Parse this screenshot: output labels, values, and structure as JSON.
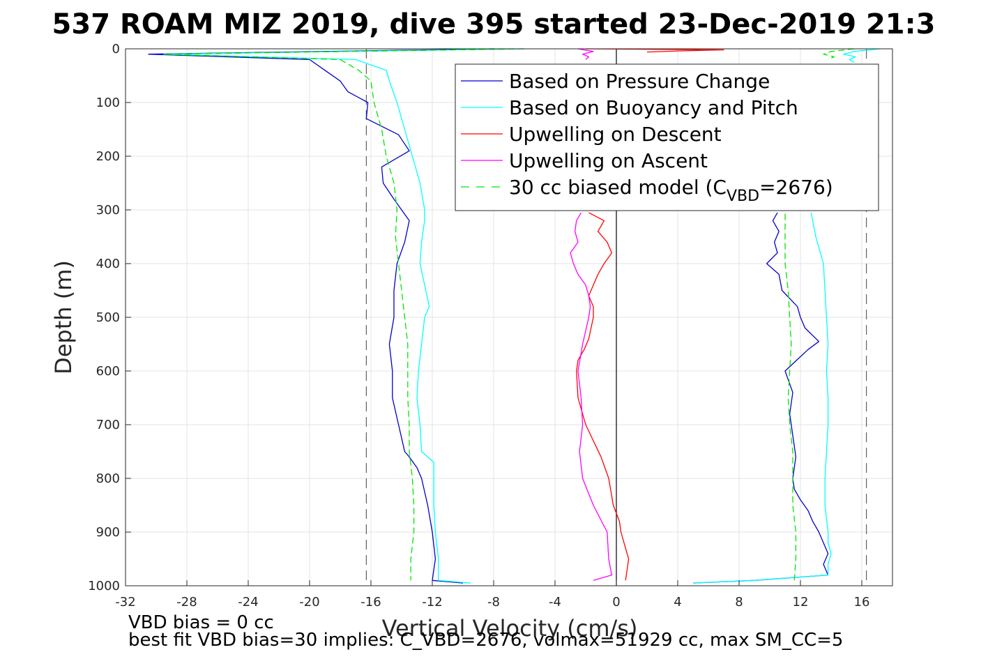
{
  "footer": {
    "line1": "VBD bias = 0 cc",
    "line2": "best fit VBD bias=30 implies: C_VBD=2676, volmax=51929 cc, max SM_CC=5"
  },
  "chart_data": {
    "type": "line",
    "title": "537 ROAM MIZ 2019, dive 395 started 23-Dec-2019 21:3",
    "xlabel": "Vertical Velocity (cm/s)",
    "ylabel": "Depth (m)",
    "xlim": [
      -32,
      18
    ],
    "ylim": [
      0,
      1000
    ],
    "y_reversed": true,
    "grid": true,
    "x_ticks": [
      -32,
      -28,
      -24,
      -20,
      -16,
      -12,
      -8,
      -4,
      0,
      4,
      8,
      12,
      16
    ],
    "y_ticks": [
      0,
      100,
      200,
      300,
      400,
      500,
      600,
      700,
      800,
      900,
      1000
    ],
    "legend_position": "upper-right",
    "reference_lines": [
      {
        "x": -16.3,
        "style": "dashed",
        "color": "#606060"
      },
      {
        "x": 16.3,
        "style": "dashed",
        "color": "#606060"
      },
      {
        "x": 0,
        "style": "solid",
        "color": "#000000"
      }
    ],
    "series": [
      {
        "name": "Based on Pressure Change",
        "color": "#0000cc",
        "style": "solid",
        "descent": {
          "depth": [
            0,
            10,
            20,
            40,
            60,
            80,
            100,
            130,
            160,
            190,
            220,
            250,
            280,
            320,
            360,
            400,
            450,
            500,
            550,
            600,
            650,
            700,
            750,
            760,
            780,
            800,
            850,
            900,
            950,
            990,
            995
          ],
          "x": [
            -8,
            -30.5,
            -20,
            -19,
            -18,
            -17.5,
            -16.2,
            -16.3,
            -14.2,
            -13.5,
            -15.3,
            -15.2,
            -14.5,
            -13.5,
            -13.8,
            -14.3,
            -14.5,
            -14.5,
            -14.8,
            -14.6,
            -14.6,
            -14.2,
            -13.8,
            -13.5,
            -13.0,
            -12.7,
            -12.3,
            -12.0,
            -11.8,
            -12.0,
            -10.0
          ]
        },
        "ascent": {
          "depth": [
            995,
            990,
            980,
            960,
            940,
            920,
            900,
            880,
            860,
            840,
            820,
            800,
            760,
            720,
            680,
            640,
            600,
            560,
            545,
            520,
            500,
            480,
            450,
            420,
            400,
            380,
            360,
            340,
            320,
            305
          ],
          "x": [
            5,
            9,
            13.8,
            13.5,
            13.8,
            13.5,
            13.2,
            12.8,
            12.5,
            12,
            11.6,
            11.5,
            11.7,
            11.5,
            11.3,
            11.5,
            11.0,
            12.5,
            13.2,
            12.3,
            12.0,
            11.8,
            10.8,
            10.6,
            9.8,
            10.5,
            10.3,
            10.6,
            10.2,
            10.5
          ]
        }
      },
      {
        "name": "Based on Buoyancy and Pitch",
        "color": "#00ffff",
        "style": "solid",
        "descent": {
          "depth": [
            0,
            10,
            20,
            40,
            60,
            100,
            150,
            200,
            250,
            300,
            320,
            360,
            400,
            440,
            480,
            500,
            550,
            600,
            650,
            700,
            750,
            770,
            800,
            850,
            900,
            950,
            990,
            995
          ],
          "x": [
            -6,
            -29.5,
            -17,
            -15,
            -14.8,
            -14.3,
            -13.8,
            -13.3,
            -12.8,
            -12.5,
            -12.5,
            -12.7,
            -12.8,
            -12.5,
            -12.2,
            -12.5,
            -12.7,
            -12.9,
            -13.0,
            -12.8,
            -12.7,
            -11.9,
            -11.9,
            -11.9,
            -11.8,
            -11.6,
            -11.6,
            -9.5
          ]
        },
        "ascent": {
          "depth": [
            995,
            990,
            980,
            960,
            940,
            920,
            900,
            850,
            800,
            750,
            700,
            650,
            600,
            550,
            500,
            450,
            400,
            350,
            320,
            305
          ],
          "x": [
            5,
            9,
            13.8,
            13.8,
            14.0,
            13.8,
            13.8,
            13.6,
            13.6,
            13.7,
            13.8,
            13.8,
            13.7,
            13.8,
            13.7,
            13.6,
            13.5,
            13.0,
            12.8,
            12.7
          ]
        },
        "surface": {
          "depth": [
            0,
            5,
            10,
            15,
            20,
            25
          ],
          "x": [
            17.2,
            15.5,
            14.8,
            15.6,
            15.2,
            15.5
          ]
        }
      },
      {
        "name": "Upwelling on Descent",
        "color": "#ff0000",
        "style": "solid",
        "profile": {
          "depth": [
            305,
            320,
            340,
            360,
            380,
            400,
            420,
            440,
            460,
            480,
            500,
            540,
            560,
            580,
            600,
            650,
            700,
            730,
            760,
            800,
            850,
            880,
            900,
            920,
            950,
            990
          ],
          "x": [
            -1.8,
            -0.8,
            -1.2,
            -0.6,
            -0.3,
            -0.8,
            -1.2,
            -1.5,
            -1.8,
            -1.5,
            -1.5,
            -1.8,
            -2.1,
            -2.5,
            -2.6,
            -2.5,
            -2.0,
            -1.5,
            -1.0,
            -0.5,
            -0.2,
            0.2,
            0.3,
            0.5,
            0.8,
            0.6
          ]
        },
        "surface": {
          "depth": [
            0,
            2,
            4,
            6
          ],
          "x": [
            -2.0,
            7.0,
            4.0,
            2.0
          ]
        }
      },
      {
        "name": "Upwelling on Ascent",
        "color": "#ff00ff",
        "style": "solid",
        "profile": {
          "depth": [
            305,
            320,
            340,
            360,
            380,
            400,
            420,
            440,
            460,
            480,
            500,
            550,
            600,
            650,
            700,
            750,
            800,
            850,
            900,
            950,
            980,
            990
          ],
          "x": [
            -2.3,
            -2.6,
            -2.7,
            -2.5,
            -3.0,
            -2.8,
            -2.5,
            -2.0,
            -1.8,
            -1.7,
            -1.8,
            -2.2,
            -2.5,
            -2.3,
            -2.2,
            -2.4,
            -2.2,
            -1.5,
            -0.6,
            -0.5,
            -0.3,
            -1.5
          ]
        },
        "surface": {
          "depth": [
            0,
            5,
            10,
            15,
            20
          ],
          "x": [
            -2.5,
            -1.5,
            -2.2,
            -1.8,
            -2.0
          ]
        }
      },
      {
        "name": "30 cc biased model (C_VBD=2676)",
        "color": "#00e600",
        "style": "dashed",
        "descent": {
          "depth": [
            0,
            10,
            20,
            40,
            60,
            100,
            150,
            200,
            250,
            300,
            350,
            400,
            450,
            500,
            550,
            600,
            650,
            700,
            750,
            800,
            850,
            900,
            950,
            990
          ],
          "x": [
            -6,
            -29.5,
            -18,
            -16.8,
            -16.0,
            -15.8,
            -15.3,
            -15.0,
            -14.5,
            -14.3,
            -14.4,
            -14.2,
            -14.0,
            -13.8,
            -13.6,
            -13.6,
            -13.6,
            -13.5,
            -13.5,
            -13.3,
            -13.2,
            -13.2,
            -13.4,
            -13.4
          ]
        },
        "ascent": {
          "depth": [
            990,
            950,
            900,
            850,
            800,
            750,
            700,
            650,
            600,
            550,
            500,
            450,
            400,
            350,
            305
          ],
          "x": [
            11.6,
            11.7,
            11.7,
            11.5,
            11.5,
            11.5,
            11.3,
            11.2,
            11.3,
            11.4,
            11.3,
            11.2,
            11.0,
            11.0,
            11.0
          ]
        },
        "surface": {
          "depth": [
            0,
            5,
            10,
            15,
            20
          ],
          "x": [
            15.5,
            14.0,
            13.5,
            14.2,
            13.8
          ]
        }
      }
    ],
    "legend": {
      "entries": [
        "Based on Pressure Change",
        "Based on Buoyancy and Pitch",
        "Upwelling on Descent",
        "Upwelling on Ascent"
      ],
      "last_entry": {
        "prefix": "30 cc biased model (C",
        "subscript": "VBD",
        "suffix": "=2676)"
      }
    }
  }
}
